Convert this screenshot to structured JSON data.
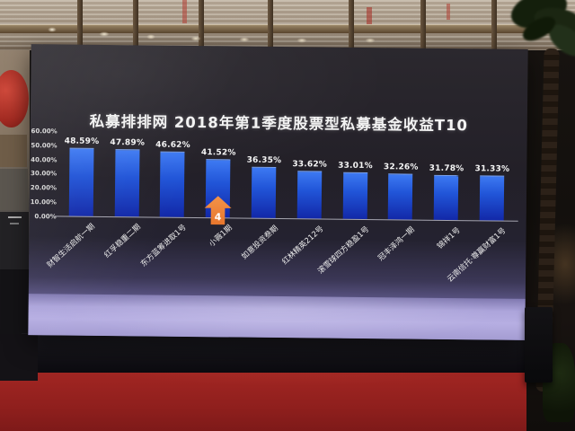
{
  "chart_data": {
    "type": "bar",
    "title": "私募排排网 2018年第1季度股票型私募基金收益T10",
    "categories": [
      "财智生活启航一期",
      "红孚稳重二期",
      "东方蓝筹进取1号",
      "小薇1期",
      "如意投资叁期",
      "红林精英212号",
      "滚雪球四方稳盈1号",
      "冠丰泽鸿一期",
      "锦祥1号",
      "云南信托·尊赢财富1号"
    ],
    "values": [
      48.59,
      47.89,
      46.62,
      41.52,
      36.35,
      33.62,
      33.01,
      32.26,
      31.78,
      31.33
    ],
    "value_labels": [
      "48.59%",
      "47.89%",
      "46.62%",
      "41.52%",
      "36.35%",
      "33.62%",
      "33.01%",
      "32.26%",
      "31.78%",
      "31.33%"
    ],
    "yticks": [
      "60.00%",
      "50.00%",
      "40.00%",
      "30.00%",
      "20.00%",
      "10.00%",
      "0.00%"
    ],
    "ylim": [
      0,
      60
    ],
    "xlabel": "",
    "ylabel": "",
    "grid": false,
    "legend": "none",
    "marker": {
      "label": "4",
      "bar_index": 3
    },
    "colors": {
      "bar_top": "#3d79f2",
      "bar_bottom": "#1228a8",
      "background": "#232028",
      "title_text": "#f3f3f3",
      "value_text": "#f5f5f5",
      "axis_text": "#d8d8d8",
      "baseline": "#c9c9d0",
      "marker": "#e8762c",
      "screen_band": "#aca4da"
    }
  },
  "scene": {
    "colors": {
      "carpet": "#9d2421",
      "stage_skirt": "#121116",
      "glass_wall": "#ab9c8a",
      "lantern": "#b23227",
      "foliage": "#1b2612"
    }
  }
}
